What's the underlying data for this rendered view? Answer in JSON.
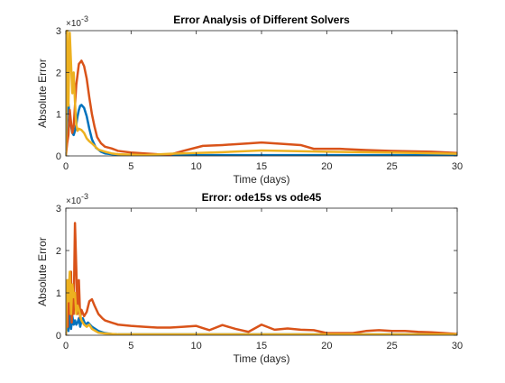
{
  "figure": {
    "background": "#ffffff"
  },
  "colors": {
    "blue": "#0072BD",
    "orange": "#D95319",
    "yellow": "#EDB120",
    "axis": "#262626"
  },
  "chart_data": [
    {
      "type": "line",
      "title": "Error Analysis of Different Solvers",
      "xlabel": "Time (days)",
      "ylabel": "Absolute Error",
      "y_exponent_base": "×10",
      "y_exponent_power": "-3",
      "xlim": [
        0,
        30
      ],
      "ylim": [
        0,
        3
      ],
      "xticks": [
        0,
        5,
        10,
        15,
        20,
        25,
        30
      ],
      "yticks": [
        0,
        1,
        2,
        3
      ],
      "box": true,
      "grid": false,
      "series": [
        {
          "color": "#0072BD",
          "x": [
            0,
            0.1,
            0.2,
            0.35,
            0.5,
            0.6,
            0.7,
            0.8,
            0.9,
            1.0,
            1.1,
            1.2,
            1.4,
            1.6,
            1.8,
            2.0,
            2.3,
            2.7,
            3.0,
            3.5,
            4,
            5,
            6,
            8,
            10,
            15,
            20,
            25,
            30
          ],
          "y": [
            0,
            1.0,
            1.25,
            0.8,
            0.55,
            0.5,
            0.6,
            0.75,
            0.95,
            1.1,
            1.2,
            1.22,
            1.15,
            0.95,
            0.65,
            0.4,
            0.2,
            0.1,
            0.06,
            0.04,
            0.02,
            0.02,
            0.02,
            0.02,
            0.02,
            0.02,
            0.02,
            0.02,
            0.02
          ]
        },
        {
          "color": "#D95319",
          "x": [
            0,
            0.1,
            0.2,
            0.3,
            0.4,
            0.5,
            0.6,
            0.7,
            0.8,
            1.0,
            1.2,
            1.4,
            1.6,
            1.8,
            2.0,
            2.2,
            2.4,
            2.7,
            3.0,
            3.5,
            4,
            5,
            6,
            7,
            8,
            9,
            10,
            10.5,
            12,
            14,
            15,
            18,
            19,
            21,
            23,
            25,
            28,
            30
          ],
          "y": [
            0,
            0.3,
            0.5,
            1.1,
            0.8,
            0.55,
            0.7,
            1.2,
            1.7,
            2.2,
            2.28,
            2.15,
            1.85,
            1.4,
            1.0,
            0.7,
            0.45,
            0.3,
            0.22,
            0.18,
            0.12,
            0.08,
            0.06,
            0.04,
            0.03,
            0.12,
            0.2,
            0.24,
            0.26,
            0.3,
            0.32,
            0.26,
            0.17,
            0.17,
            0.14,
            0.12,
            0.1,
            0.07
          ]
        },
        {
          "color": "#EDB120",
          "x": [
            0,
            0.1,
            0.2,
            0.3,
            0.4,
            0.5,
            0.6,
            0.7,
            0.8,
            0.9,
            1.0,
            1.2,
            1.4,
            1.6,
            1.8,
            2.0,
            2.5,
            3.0,
            3.5,
            4,
            5,
            6,
            8,
            10,
            12,
            15,
            20,
            25,
            30
          ],
          "y": [
            0,
            3.0,
            1.2,
            2.95,
            2.2,
            1.5,
            2.0,
            1.3,
            0.75,
            0.6,
            0.65,
            0.62,
            0.55,
            0.42,
            0.35,
            0.3,
            0.15,
            0.1,
            0.06,
            0.04,
            0.03,
            0.02,
            0.05,
            0.07,
            0.09,
            0.13,
            0.1,
            0.08,
            0.05
          ]
        }
      ]
    },
    {
      "type": "line",
      "title": "Error: ode15s vs ode45",
      "xlabel": "Time (days)",
      "ylabel": "Absolute Error",
      "y_exponent_base": "×10",
      "y_exponent_power": "-3",
      "xlim": [
        0,
        30
      ],
      "ylim": [
        0,
        3
      ],
      "xticks": [
        0,
        5,
        10,
        15,
        20,
        25,
        30
      ],
      "yticks": [
        0,
        1,
        2,
        3
      ],
      "box": true,
      "grid": false,
      "series": [
        {
          "color": "#0072BD",
          "x": [
            0,
            0.1,
            0.2,
            0.3,
            0.4,
            0.5,
            0.6,
            0.7,
            0.8,
            0.9,
            1.0,
            1.1,
            1.2,
            1.3,
            1.5,
            1.7,
            2.0,
            2.5,
            3.0,
            3.5,
            4,
            5,
            10,
            15,
            20,
            25,
            30
          ],
          "y": [
            0,
            0.4,
            0.1,
            0.6,
            0.15,
            0.45,
            0.25,
            0.35,
            0.25,
            0.3,
            0.4,
            0.2,
            0.35,
            0.4,
            0.25,
            0.3,
            0.2,
            0.1,
            0.05,
            0.03,
            0.02,
            0.02,
            0.02,
            0.02,
            0.02,
            0.02,
            0.02
          ]
        },
        {
          "color": "#D95319",
          "x": [
            0,
            0.1,
            0.15,
            0.2,
            0.3,
            0.4,
            0.45,
            0.5,
            0.6,
            0.7,
            0.8,
            0.9,
            1.0,
            1.1,
            1.2,
            1.4,
            1.6,
            1.8,
            2.0,
            2.2,
            2.5,
            2.8,
            3.0,
            3.5,
            4,
            5,
            6,
            7,
            8,
            9,
            10,
            10.5,
            11,
            12,
            13,
            14,
            15,
            16,
            17,
            18,
            19,
            20,
            21,
            22,
            23,
            24,
            25,
            26,
            27,
            28,
            29,
            30
          ],
          "y": [
            0,
            0.8,
            0.2,
            1.3,
            0.5,
            1.5,
            0.3,
            0.9,
            0.5,
            2.65,
            1.6,
            0.5,
            1.3,
            0.4,
            0.6,
            0.45,
            0.55,
            0.8,
            0.85,
            0.7,
            0.5,
            0.4,
            0.35,
            0.3,
            0.25,
            0.22,
            0.2,
            0.18,
            0.18,
            0.2,
            0.22,
            0.17,
            0.12,
            0.24,
            0.15,
            0.08,
            0.25,
            0.13,
            0.16,
            0.13,
            0.12,
            0.05,
            0.05,
            0.05,
            0.1,
            0.12,
            0.1,
            0.1,
            0.08,
            0.07,
            0.05,
            0.03
          ]
        },
        {
          "color": "#EDB120",
          "x": [
            0,
            0.1,
            0.2,
            0.3,
            0.4,
            0.5,
            0.6,
            0.7,
            0.8,
            0.9,
            1.0,
            1.2,
            1.4,
            1.6,
            1.8,
            2.0,
            2.5,
            3.0,
            4,
            5,
            10,
            15,
            20,
            25,
            30
          ],
          "y": [
            0,
            1.3,
            0.8,
            1.5,
            0.5,
            1.2,
            0.9,
            1.0,
            0.5,
            0.7,
            0.6,
            0.35,
            0.25,
            0.2,
            0.25,
            0.15,
            0.06,
            0.04,
            0.02,
            0.02,
            0.02,
            0.02,
            0.02,
            0.02,
            0.02
          ]
        }
      ]
    }
  ]
}
